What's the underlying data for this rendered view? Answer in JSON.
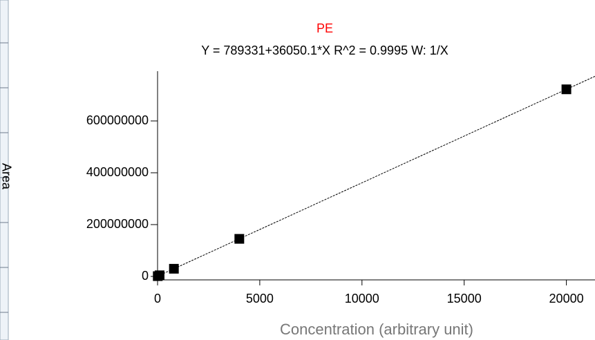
{
  "chart_data": {
    "type": "scatter",
    "title": "PE",
    "subtitle": "Y = 789331+36050.1*X   R^2 = 0.9995   W: 1/X",
    "x_label": "Concentration (arbitrary unit)",
    "y_label": "Area",
    "title_color": "#ff0000",
    "x": [
      10,
      100,
      800,
      4000,
      20000
    ],
    "values": [
      1150000,
      4400000,
      29600000,
      145000000,
      722000000
    ],
    "color": "#000000",
    "fit": {
      "intercept": 789331,
      "slope": 36050.1,
      "style": "dashed"
    },
    "xlim": [
      0,
      21400
    ],
    "ylim": [
      0,
      792000000
    ],
    "xticks": [
      0,
      5000,
      10000,
      15000,
      20000
    ],
    "yticks": [
      0,
      200000000,
      400000000,
      600000000
    ],
    "grid": false
  }
}
